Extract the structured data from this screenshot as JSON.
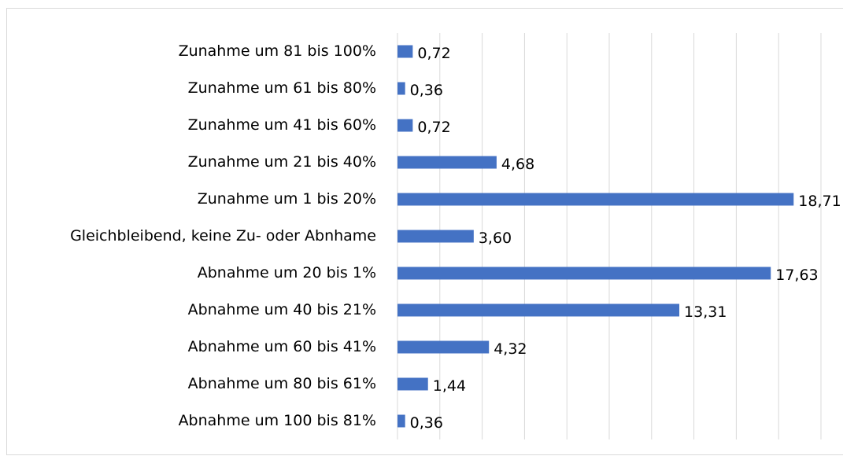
{
  "chart_data": {
    "type": "hbar",
    "categories": [
      "Zunahme um 81 bis 100%",
      "Zunahme um 61 bis 80%",
      "Zunahme um 41 bis 60%",
      "Zunahme um 21 bis 40%",
      "Zunahme um 1 bis 20%",
      "Gleichbleibend, keine Zu- oder Abnhame",
      "Abnahme um 20 bis 1%",
      "Abnahme um 40 bis 21%",
      "Abnahme um 60 bis 41%",
      "Abnahme um 80 bis 61%",
      "Abnahme um 100 bis 81%"
    ],
    "values": [
      0.72,
      0.36,
      0.72,
      4.68,
      18.71,
      3.6,
      17.63,
      13.31,
      4.32,
      1.44,
      0.36
    ],
    "value_labels": [
      "0,72",
      "0,36",
      "0,72",
      "4,68",
      "18,71",
      "3,60",
      "17,63",
      "13,31",
      "4,32",
      "1,44",
      "0,36"
    ],
    "color": "#4472c4",
    "xlim": [
      0,
      20
    ],
    "xticks": [
      0,
      2,
      4,
      6,
      8,
      10,
      12,
      14,
      16,
      18,
      20
    ],
    "grid": true
  }
}
